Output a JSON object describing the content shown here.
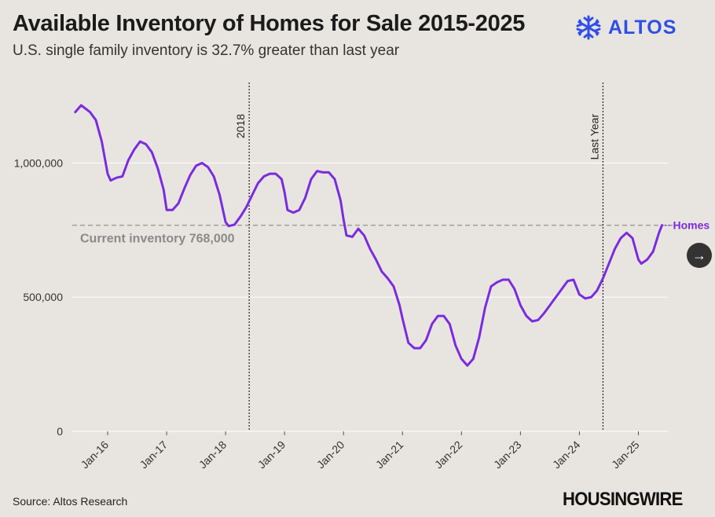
{
  "header": {
    "title": "Available Inventory of Homes for Sale 2015-2025",
    "subtitle": "U.S. single family inventory is 32.7% greater than last year"
  },
  "brand": {
    "name": "ALTOS",
    "color": "#2f4ee8",
    "icon": "altos-snowflake-icon"
  },
  "footer": {
    "source": "Source: Altos Research",
    "publisher": "HOUSINGWIRE"
  },
  "controls": {
    "next_icon": "arrow-right-icon",
    "next_glyph": "→"
  },
  "chart_data": {
    "type": "line",
    "title": "Available Inventory of Homes for Sale 2015-2025",
    "xlabel": "",
    "ylabel": "",
    "ylim": [
      0,
      1300000
    ],
    "xlim": [
      2015.4,
      2025.5
    ],
    "grid": true,
    "x_ticks": [
      {
        "label": "Jan-16",
        "value": 2016.0
      },
      {
        "label": "Jan-17",
        "value": 2017.0
      },
      {
        "label": "Jan-18",
        "value": 2018.0
      },
      {
        "label": "Jan-19",
        "value": 2019.0
      },
      {
        "label": "Jan-20",
        "value": 2020.0
      },
      {
        "label": "Jan-21",
        "value": 2021.0
      },
      {
        "label": "Jan-22",
        "value": 2022.0
      },
      {
        "label": "Jan-23",
        "value": 2023.0
      },
      {
        "label": "Jan-24",
        "value": 2024.0
      },
      {
        "label": "Jan-25",
        "value": 2025.0
      }
    ],
    "y_ticks": [
      {
        "label": "0",
        "value": 0
      },
      {
        "label": "500,000",
        "value": 500000
      },
      {
        "label": "1,000,000",
        "value": 1000000
      }
    ],
    "reference_lines": [
      {
        "label": "2018",
        "x": 2018.4
      },
      {
        "label": "Last Year",
        "x": 2024.4
      }
    ],
    "current_line": {
      "label": "Current inventory 768,000",
      "value": 768000
    },
    "series": [
      {
        "name": "Homes",
        "color": "#7b2be0",
        "points": [
          [
            2015.45,
            1190000
          ],
          [
            2015.55,
            1215000
          ],
          [
            2015.7,
            1190000
          ],
          [
            2015.8,
            1160000
          ],
          [
            2015.9,
            1080000
          ],
          [
            2016.0,
            960000
          ],
          [
            2016.05,
            935000
          ],
          [
            2016.15,
            945000
          ],
          [
            2016.25,
            950000
          ],
          [
            2016.35,
            1010000
          ],
          [
            2016.45,
            1050000
          ],
          [
            2016.55,
            1080000
          ],
          [
            2016.65,
            1070000
          ],
          [
            2016.75,
            1040000
          ],
          [
            2016.85,
            980000
          ],
          [
            2016.95,
            900000
          ],
          [
            2017.0,
            825000
          ],
          [
            2017.1,
            825000
          ],
          [
            2017.2,
            850000
          ],
          [
            2017.3,
            905000
          ],
          [
            2017.4,
            955000
          ],
          [
            2017.5,
            990000
          ],
          [
            2017.6,
            1000000
          ],
          [
            2017.7,
            985000
          ],
          [
            2017.8,
            950000
          ],
          [
            2017.9,
            880000
          ],
          [
            2018.0,
            780000
          ],
          [
            2018.05,
            765000
          ],
          [
            2018.15,
            770000
          ],
          [
            2018.25,
            800000
          ],
          [
            2018.35,
            835000
          ],
          [
            2018.45,
            880000
          ],
          [
            2018.55,
            925000
          ],
          [
            2018.65,
            950000
          ],
          [
            2018.75,
            960000
          ],
          [
            2018.85,
            960000
          ],
          [
            2018.95,
            940000
          ],
          [
            2019.0,
            890000
          ],
          [
            2019.05,
            825000
          ],
          [
            2019.15,
            815000
          ],
          [
            2019.25,
            825000
          ],
          [
            2019.35,
            870000
          ],
          [
            2019.45,
            940000
          ],
          [
            2019.55,
            970000
          ],
          [
            2019.65,
            965000
          ],
          [
            2019.75,
            965000
          ],
          [
            2019.85,
            940000
          ],
          [
            2019.95,
            860000
          ],
          [
            2020.0,
            790000
          ],
          [
            2020.05,
            730000
          ],
          [
            2020.15,
            725000
          ],
          [
            2020.25,
            755000
          ],
          [
            2020.35,
            730000
          ],
          [
            2020.45,
            680000
          ],
          [
            2020.55,
            640000
          ],
          [
            2020.65,
            595000
          ],
          [
            2020.75,
            570000
          ],
          [
            2020.85,
            540000
          ],
          [
            2020.95,
            470000
          ],
          [
            2021.0,
            420000
          ],
          [
            2021.1,
            330000
          ],
          [
            2021.2,
            310000
          ],
          [
            2021.3,
            310000
          ],
          [
            2021.4,
            340000
          ],
          [
            2021.5,
            400000
          ],
          [
            2021.6,
            430000
          ],
          [
            2021.7,
            430000
          ],
          [
            2021.8,
            400000
          ],
          [
            2021.9,
            320000
          ],
          [
            2022.0,
            270000
          ],
          [
            2022.1,
            245000
          ],
          [
            2022.2,
            270000
          ],
          [
            2022.3,
            350000
          ],
          [
            2022.4,
            460000
          ],
          [
            2022.5,
            540000
          ],
          [
            2022.6,
            555000
          ],
          [
            2022.7,
            565000
          ],
          [
            2022.8,
            565000
          ],
          [
            2022.9,
            530000
          ],
          [
            2023.0,
            470000
          ],
          [
            2023.1,
            430000
          ],
          [
            2023.2,
            410000
          ],
          [
            2023.3,
            415000
          ],
          [
            2023.4,
            440000
          ],
          [
            2023.5,
            470000
          ],
          [
            2023.6,
            500000
          ],
          [
            2023.7,
            530000
          ],
          [
            2023.8,
            560000
          ],
          [
            2023.9,
            565000
          ],
          [
            2024.0,
            510000
          ],
          [
            2024.1,
            495000
          ],
          [
            2024.2,
            500000
          ],
          [
            2024.3,
            525000
          ],
          [
            2024.4,
            570000
          ],
          [
            2024.5,
            625000
          ],
          [
            2024.6,
            680000
          ],
          [
            2024.7,
            720000
          ],
          [
            2024.8,
            740000
          ],
          [
            2024.9,
            720000
          ],
          [
            2025.0,
            640000
          ],
          [
            2025.05,
            625000
          ],
          [
            2025.15,
            640000
          ],
          [
            2025.25,
            670000
          ],
          [
            2025.35,
            740000
          ],
          [
            2025.4,
            768000
          ]
        ],
        "end_label": "Homes"
      }
    ]
  }
}
